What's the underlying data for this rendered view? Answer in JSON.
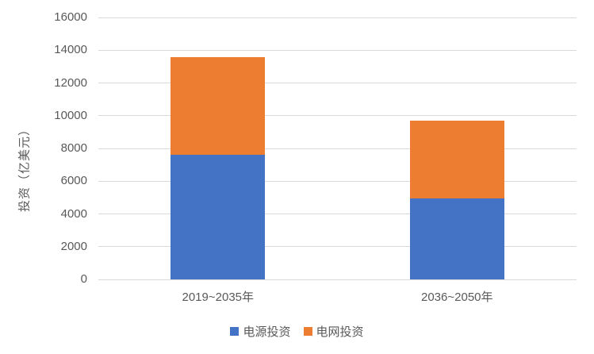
{
  "page": {
    "background": "#ffffff",
    "text_color": "#595959",
    "gridline_color": "#d9d9d9"
  },
  "chart_data": {
    "type": "bar",
    "stacked": true,
    "title": "",
    "xlabel": "",
    "ylabel": "投资（亿美元）",
    "categories": [
      "2019~2035年",
      "2036~2050年"
    ],
    "series": [
      {
        "name": "电源投资",
        "color": "#4472c4",
        "values": [
          7600,
          4950
        ]
      },
      {
        "name": "电网投资",
        "color": "#ed7d31",
        "values": [
          6000,
          4750
        ]
      }
    ],
    "stack_totals": [
      13600,
      9700
    ],
    "ylim": [
      0,
      16000
    ],
    "y_ticks": [
      0,
      2000,
      4000,
      6000,
      8000,
      10000,
      12000,
      14000,
      16000
    ],
    "grid": true,
    "legend_position": "bottom"
  }
}
